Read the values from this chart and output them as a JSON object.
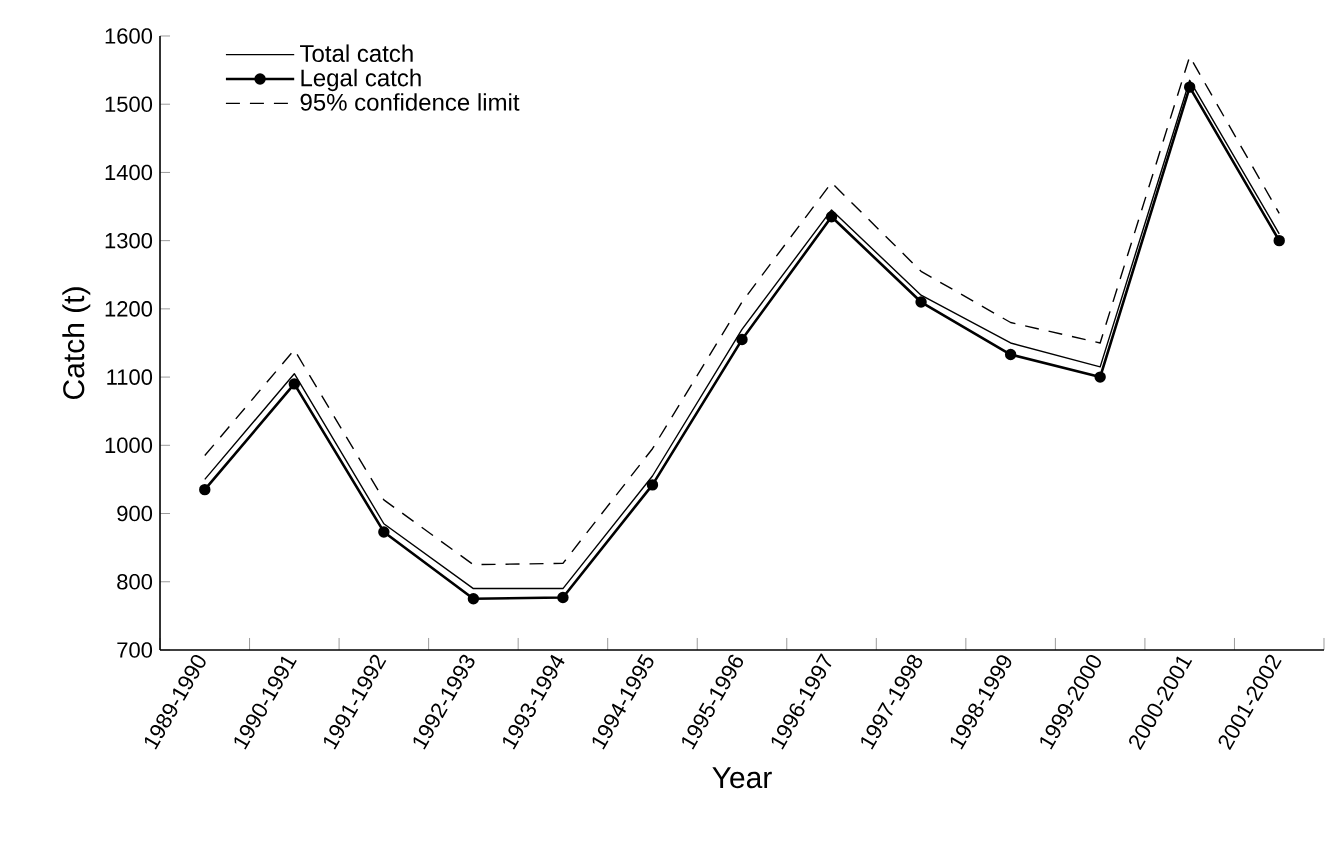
{
  "chart_data": {
    "type": "line",
    "xlabel": "Year",
    "ylabel": "Catch (t)",
    "categories": [
      "1989-1990",
      "1990-1991",
      "1991-1992",
      "1992-1993",
      "1993-1994",
      "1994-1995",
      "1995-1996",
      "1996-1997",
      "1997-1998",
      "1998-1999",
      "1999-2000",
      "2000-2001",
      "2001-2002"
    ],
    "ylim": [
      700,
      1600
    ],
    "yticks": [
      700,
      800,
      900,
      1000,
      1100,
      1200,
      1300,
      1400,
      1500,
      1600
    ],
    "legend": "top left",
    "grid": false,
    "series": [
      {
        "name": "Total catch",
        "color": "#000000",
        "line_style": "solid",
        "marker": "none",
        "values": [
          950,
          1105,
          885,
          790,
          790,
          955,
          1170,
          1345,
          1220,
          1150,
          1115,
          1535,
          1310
        ]
      },
      {
        "name": "Legal catch",
        "color": "#000000",
        "line_style": "solid",
        "marker": "circle",
        "values": [
          935,
          1090,
          873,
          775,
          777,
          942,
          1155,
          1335,
          1210,
          1133,
          1100,
          1525,
          1300
        ]
      },
      {
        "name": "95% confidence limit",
        "color": "#000000",
        "line_style": "dashed",
        "marker": "none",
        "values": [
          985,
          1140,
          920,
          825,
          827,
          995,
          1210,
          1385,
          1255,
          1180,
          1150,
          1570,
          1340
        ]
      }
    ]
  }
}
